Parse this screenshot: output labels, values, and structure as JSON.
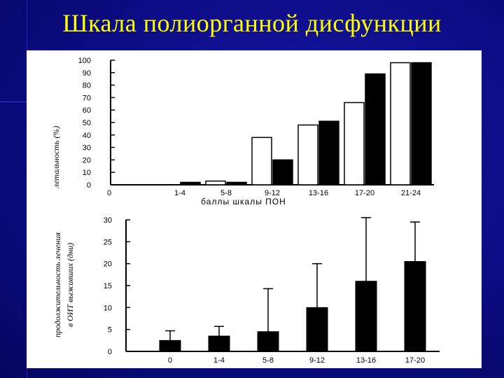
{
  "slide": {
    "title": "Шкала полиорганной дисфункции"
  },
  "colors": {
    "background": "#0c0c86",
    "title": "#ffff00",
    "panel": "#ffffff",
    "bars_dark": "#000000"
  },
  "chart_data": [
    {
      "type": "bar",
      "categories": [
        "0",
        "1-4",
        "5-8",
        "9-12",
        "13-16",
        "17-20",
        "21-24"
      ],
      "series": [
        {
          "style": "white",
          "values": [
            0,
            0,
            3,
            38,
            48,
            66,
            98
          ]
        },
        {
          "style": "black",
          "values": [
            0,
            2,
            2,
            20,
            51,
            89,
            98
          ]
        }
      ],
      "xlabel": "баллы шкалы ПОН",
      "ylabel": "летальность (%)",
      "ylim": [
        0,
        100
      ],
      "yticks": [
        "100",
        "90",
        "80",
        "70",
        "60",
        "50",
        "40",
        "30",
        "20",
        "10",
        "0"
      ],
      "grid": false
    },
    {
      "type": "bar",
      "categories": [
        "0",
        "1-4",
        "5-8",
        "9-12",
        "13-16",
        "17-20"
      ],
      "series": [
        {
          "style": "black-with-error-bars",
          "values": [
            2.5,
            3.5,
            4.5,
            10,
            16,
            20.5
          ],
          "error_upper": [
            4.7,
            5.7,
            14.3,
            20,
            30.5,
            29.5
          ]
        }
      ],
      "xlabel": "",
      "ylabel": "продолжительность лечения в ОИТ выживших (дни)",
      "ylabel_lines": [
        "продолжительность лечения",
        "в ОИТ выживших (дни)"
      ],
      "ylim": [
        0,
        30
      ],
      "yticks": [
        "30",
        "25",
        "20",
        "15",
        "10",
        "5",
        "0"
      ],
      "grid": false
    }
  ]
}
